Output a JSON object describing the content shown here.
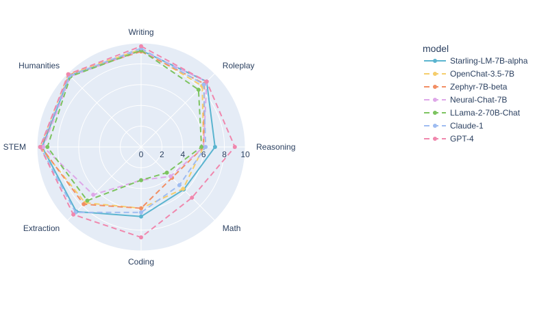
{
  "chart_data": {
    "type": "radar",
    "axes": [
      "Writing",
      "Roleplay",
      "Reasoning",
      "Math",
      "Coding",
      "Extraction",
      "STEM",
      "Humanities"
    ],
    "radial_range": [
      0,
      10
    ],
    "radial_ticks": [
      "0",
      "2",
      "4",
      "6",
      "8",
      "10"
    ],
    "grid": true,
    "legend": {
      "title": "model",
      "position": "right"
    },
    "series": [
      {
        "name": "Starling-LM-7B-alpha",
        "color": "#5ab4cf",
        "dash": "solid",
        "values": [
          9.3,
          8.9,
          7.1,
          5.8,
          6.7,
          8.8,
          9.5,
          9.7
        ]
      },
      {
        "name": "OpenChat-3.5-7B",
        "color": "#f5cd6b",
        "dash": "dashed",
        "values": [
          9.4,
          8.3,
          6.0,
          5.7,
          5.9,
          7.6,
          9.7,
          9.9
        ]
      },
      {
        "name": "Zephyr-7B-beta",
        "color": "#f28e63",
        "dash": "dashed",
        "values": [
          9.2,
          8.6,
          6.0,
          4.2,
          5.9,
          7.8,
          9.6,
          9.8
        ]
      },
      {
        "name": "Neural-Chat-7B",
        "color": "#dea7e8",
        "dash": "dashed",
        "values": [
          9.3,
          8.9,
          6.0,
          4.0,
          3.2,
          6.5,
          9.4,
          9.6
        ]
      },
      {
        "name": "LLama-2-70B-Chat",
        "color": "#7cc35f",
        "dash": "dashed",
        "values": [
          9.3,
          7.8,
          5.8,
          3.5,
          3.2,
          7.3,
          9.0,
          9.6
        ]
      },
      {
        "name": "Claude-1",
        "color": "#9ebcf1",
        "dash": "dashed",
        "values": [
          9.5,
          8.5,
          6.2,
          5.2,
          6.3,
          8.9,
          9.7,
          9.7
        ]
      },
      {
        "name": "GPT-4",
        "color": "#f087ad",
        "dash": "dashed",
        "values": [
          9.7,
          8.9,
          9.0,
          6.9,
          8.7,
          9.2,
          9.7,
          9.9
        ]
      }
    ]
  }
}
